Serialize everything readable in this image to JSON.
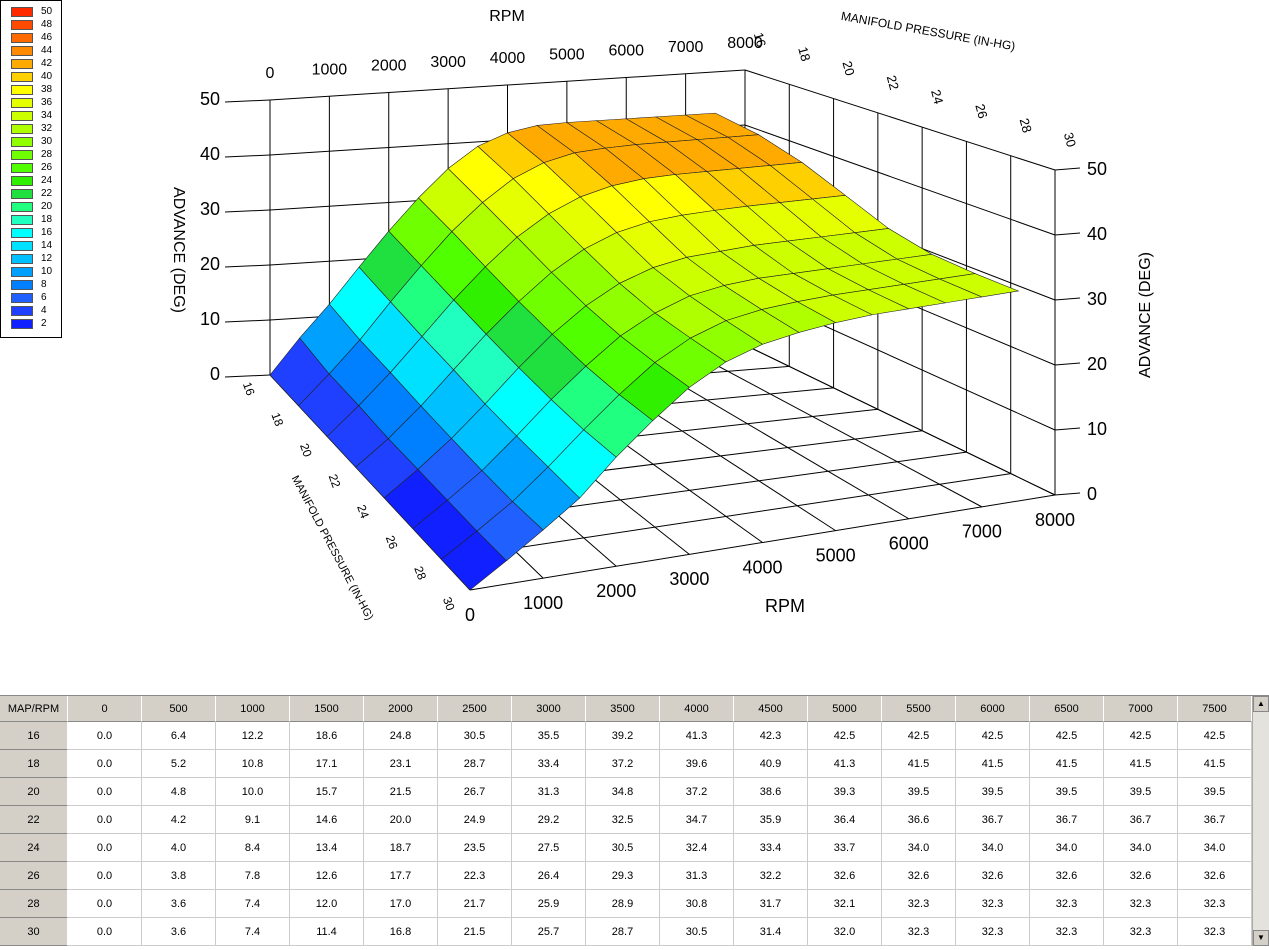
{
  "legend": {
    "levels": [
      {
        "value": 50,
        "color": "#ff2a00"
      },
      {
        "value": 48,
        "color": "#ff4a00"
      },
      {
        "value": 46,
        "color": "#ff6a00"
      },
      {
        "value": 44,
        "color": "#ff8a00"
      },
      {
        "value": 42,
        "color": "#ffaa00"
      },
      {
        "value": 40,
        "color": "#ffd000"
      },
      {
        "value": 38,
        "color": "#ffff00"
      },
      {
        "value": 36,
        "color": "#e6ff00"
      },
      {
        "value": 34,
        "color": "#ccff00"
      },
      {
        "value": 32,
        "color": "#b0ff00"
      },
      {
        "value": 30,
        "color": "#90ff00"
      },
      {
        "value": 28,
        "color": "#70ff00"
      },
      {
        "value": 26,
        "color": "#50ff00"
      },
      {
        "value": 24,
        "color": "#30f000"
      },
      {
        "value": 22,
        "color": "#20e040"
      },
      {
        "value": 20,
        "color": "#20ff80"
      },
      {
        "value": 18,
        "color": "#20ffc0"
      },
      {
        "value": 16,
        "color": "#00ffff"
      },
      {
        "value": 14,
        "color": "#00e0ff"
      },
      {
        "value": 12,
        "color": "#00c0ff"
      },
      {
        "value": 10,
        "color": "#00a0ff"
      },
      {
        "value": 8,
        "color": "#0080ff"
      },
      {
        "value": 6,
        "color": "#2060ff"
      },
      {
        "value": 4,
        "color": "#2040ff"
      },
      {
        "value": 2,
        "color": "#1020ff"
      }
    ]
  },
  "plot": {
    "rpm_label": "RPM",
    "map_label": "MANIFOLD PRESSURE (IN-HG)",
    "advance_label": "ADVANCE (DEG)",
    "rpm_ticks": [
      0,
      1000,
      2000,
      3000,
      4000,
      5000,
      6000,
      7000,
      8000
    ],
    "map_ticks": [
      16,
      18,
      20,
      22,
      24,
      26,
      28,
      30
    ],
    "advance_ticks": [
      0,
      10,
      20,
      30,
      40,
      50
    ]
  },
  "table": {
    "corner": "MAP/RPM",
    "columns": [
      "0",
      "500",
      "1000",
      "1500",
      "2000",
      "2500",
      "3000",
      "3500",
      "4000",
      "4500",
      "5000",
      "5500",
      "6000",
      "6500",
      "7000",
      "7500"
    ],
    "rows": [
      {
        "label": "16",
        "values": [
          "0.0",
          "6.4",
          "12.2",
          "18.6",
          "24.8",
          "30.5",
          "35.5",
          "39.2",
          "41.3",
          "42.3",
          "42.5",
          "42.5",
          "42.5",
          "42.5",
          "42.5",
          "42.5"
        ]
      },
      {
        "label": "18",
        "values": [
          "0.0",
          "5.2",
          "10.8",
          "17.1",
          "23.1",
          "28.7",
          "33.4",
          "37.2",
          "39.6",
          "40.9",
          "41.3",
          "41.5",
          "41.5",
          "41.5",
          "41.5",
          "41.5"
        ]
      },
      {
        "label": "20",
        "values": [
          "0.0",
          "4.8",
          "10.0",
          "15.7",
          "21.5",
          "26.7",
          "31.3",
          "34.8",
          "37.2",
          "38.6",
          "39.3",
          "39.5",
          "39.5",
          "39.5",
          "39.5",
          "39.5"
        ]
      },
      {
        "label": "22",
        "values": [
          "0.0",
          "4.2",
          "9.1",
          "14.6",
          "20.0",
          "24.9",
          "29.2",
          "32.5",
          "34.7",
          "35.9",
          "36.4",
          "36.6",
          "36.7",
          "36.7",
          "36.7",
          "36.7"
        ]
      },
      {
        "label": "24",
        "values": [
          "0.0",
          "4.0",
          "8.4",
          "13.4",
          "18.7",
          "23.5",
          "27.5",
          "30.5",
          "32.4",
          "33.4",
          "33.7",
          "34.0",
          "34.0",
          "34.0",
          "34.0",
          "34.0"
        ]
      },
      {
        "label": "26",
        "values": [
          "0.0",
          "3.8",
          "7.8",
          "12.6",
          "17.7",
          "22.3",
          "26.4",
          "29.3",
          "31.3",
          "32.2",
          "32.6",
          "32.6",
          "32.6",
          "32.6",
          "32.6",
          "32.6"
        ]
      },
      {
        "label": "28",
        "values": [
          "0.0",
          "3.6",
          "7.4",
          "12.0",
          "17.0",
          "21.7",
          "25.9",
          "28.9",
          "30.8",
          "31.7",
          "32.1",
          "32.3",
          "32.3",
          "32.3",
          "32.3",
          "32.3"
        ]
      },
      {
        "label": "30",
        "values": [
          "0.0",
          "3.6",
          "7.4",
          "11.4",
          "16.8",
          "21.5",
          "25.7",
          "28.7",
          "30.5",
          "31.4",
          "32.0",
          "32.3",
          "32.3",
          "32.3",
          "32.3",
          "32.3"
        ]
      }
    ]
  }
}
